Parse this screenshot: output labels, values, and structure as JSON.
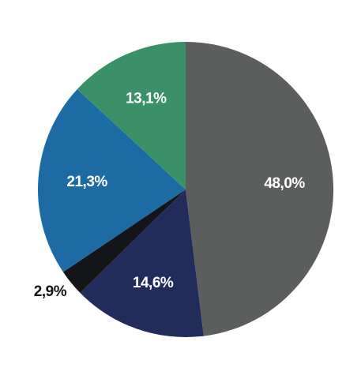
{
  "chart_data": {
    "type": "pie",
    "start_angle_deg": 0,
    "direction": "clockwise",
    "slices": [
      {
        "label": "48,0%",
        "value": 48.0,
        "color": "#5b5e5d",
        "label_color": "#ffffff",
        "label_position": "inside"
      },
      {
        "label": "14,6%",
        "value": 14.6,
        "color": "#222c5b",
        "label_color": "#ffffff",
        "label_position": "inside"
      },
      {
        "label": "2,9%",
        "value": 2.9,
        "color": "#141519",
        "label_color": "#141519",
        "label_position": "outside"
      },
      {
        "label": "21,3%",
        "value": 21.3,
        "color": "#1d6ba5",
        "label_color": "#ffffff",
        "label_position": "inside"
      },
      {
        "label": "13,1%",
        "value": 13.1,
        "color": "#3a9168",
        "label_color": "#ffffff",
        "label_position": "inside"
      }
    ]
  }
}
